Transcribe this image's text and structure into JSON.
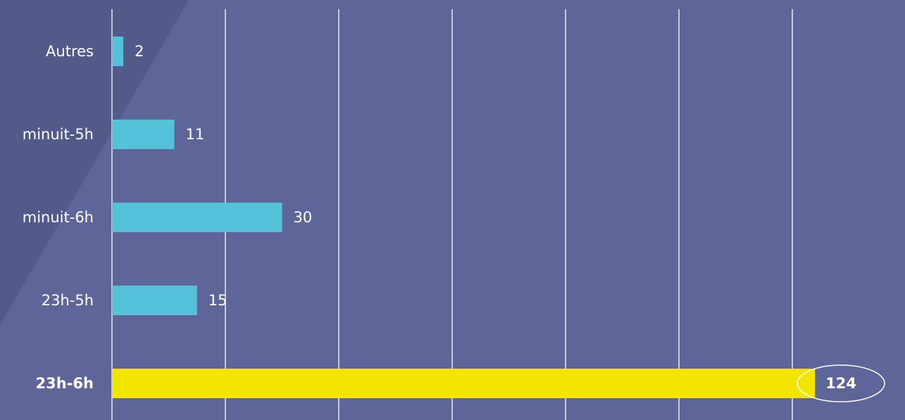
{
  "chart_data": {
    "type": "bar",
    "orientation": "horizontal",
    "categories": [
      "Autres",
      "minuit-5h",
      "minuit-6h",
      "23h-5h",
      "23h-6h"
    ],
    "values": [
      2,
      11,
      30,
      15,
      124
    ],
    "xlim": [
      0,
      140
    ],
    "grid": true,
    "highlighted_category": "23h-6h",
    "colors": {
      "background": "#5e6699",
      "background_panel": "#525a8a",
      "bar": "#56c2da",
      "bar_highlight": "#f2e500",
      "gridline": "#ffffff",
      "text": "#ffffff"
    }
  }
}
